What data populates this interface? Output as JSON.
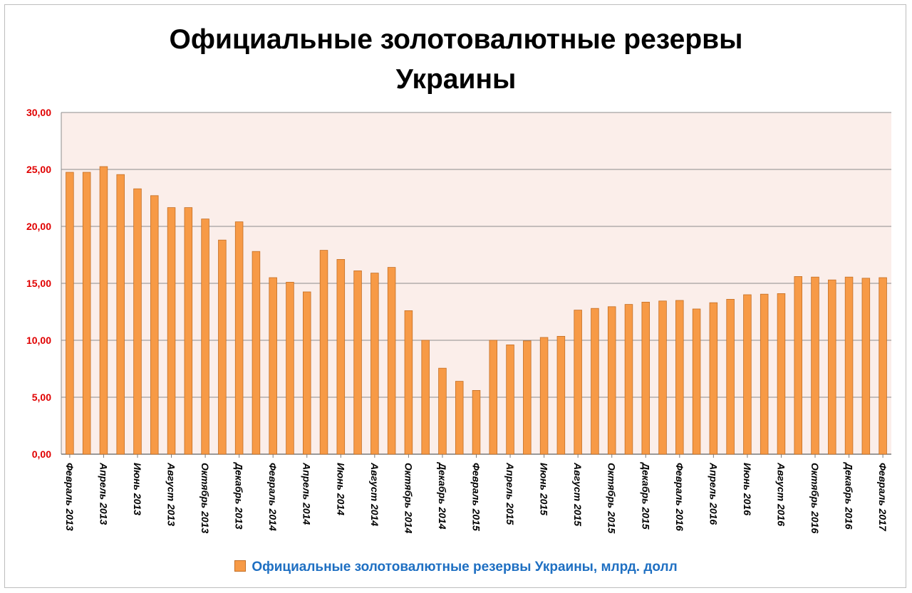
{
  "chart_data": {
    "type": "bar",
    "title_lines": [
      "Официальные золотовалютные резервы",
      "Украины"
    ],
    "ylim": [
      0,
      30
    ],
    "yticks": [
      "0,00",
      "5,00",
      "10,00",
      "15,00",
      "20,00",
      "25,00",
      "30,00"
    ],
    "grid": true,
    "legend_position": "bottom",
    "x_tick_labels": [
      "Февраль 2013",
      "Апрель 2013",
      "Июнь 2013",
      "Август 2013",
      "Октябрь 2013",
      "Декабрь 2013",
      "Февраль 2014",
      "Апрель 2014",
      "Июнь 2014",
      "Август 2014",
      "Октябрь 2014",
      "Декабрь 2014",
      "Февраль 2015",
      "Апрель 2015",
      "Июнь 2015",
      "Август 2015",
      "Октябрь 2015",
      "Декабрь 2015",
      "Февраль 2016",
      "Апрель 2016",
      "Июнь 2016",
      "Август 2016",
      "Октябрь 2016",
      "Декабрь 2016",
      "Февраль 2017"
    ],
    "series": [
      {
        "name": "Официальные золотовалютные резервы Украины, млрд. долл",
        "color": "#f79a46",
        "values": [
          24.75,
          24.75,
          25.25,
          24.55,
          23.3,
          22.7,
          21.65,
          21.65,
          20.65,
          18.8,
          20.4,
          17.8,
          15.5,
          15.1,
          14.25,
          17.9,
          17.1,
          16.1,
          15.9,
          16.4,
          12.6,
          10.0,
          7.55,
          6.4,
          5.6,
          10.0,
          9.6,
          9.95,
          10.25,
          10.35,
          12.65,
          12.8,
          12.95,
          13.15,
          13.35,
          13.45,
          13.5,
          12.75,
          13.3,
          13.6,
          14.0,
          14.05,
          14.1,
          15.6,
          15.55,
          15.3,
          15.55,
          15.45,
          15.5
        ]
      }
    ],
    "colors": {
      "plot_background": "#fbeeea",
      "bar_fill": "#f79a46",
      "bar_stroke": "#c46f25",
      "ytick_color": "#e00000",
      "legend_text_color": "#1e6fc2"
    }
  }
}
